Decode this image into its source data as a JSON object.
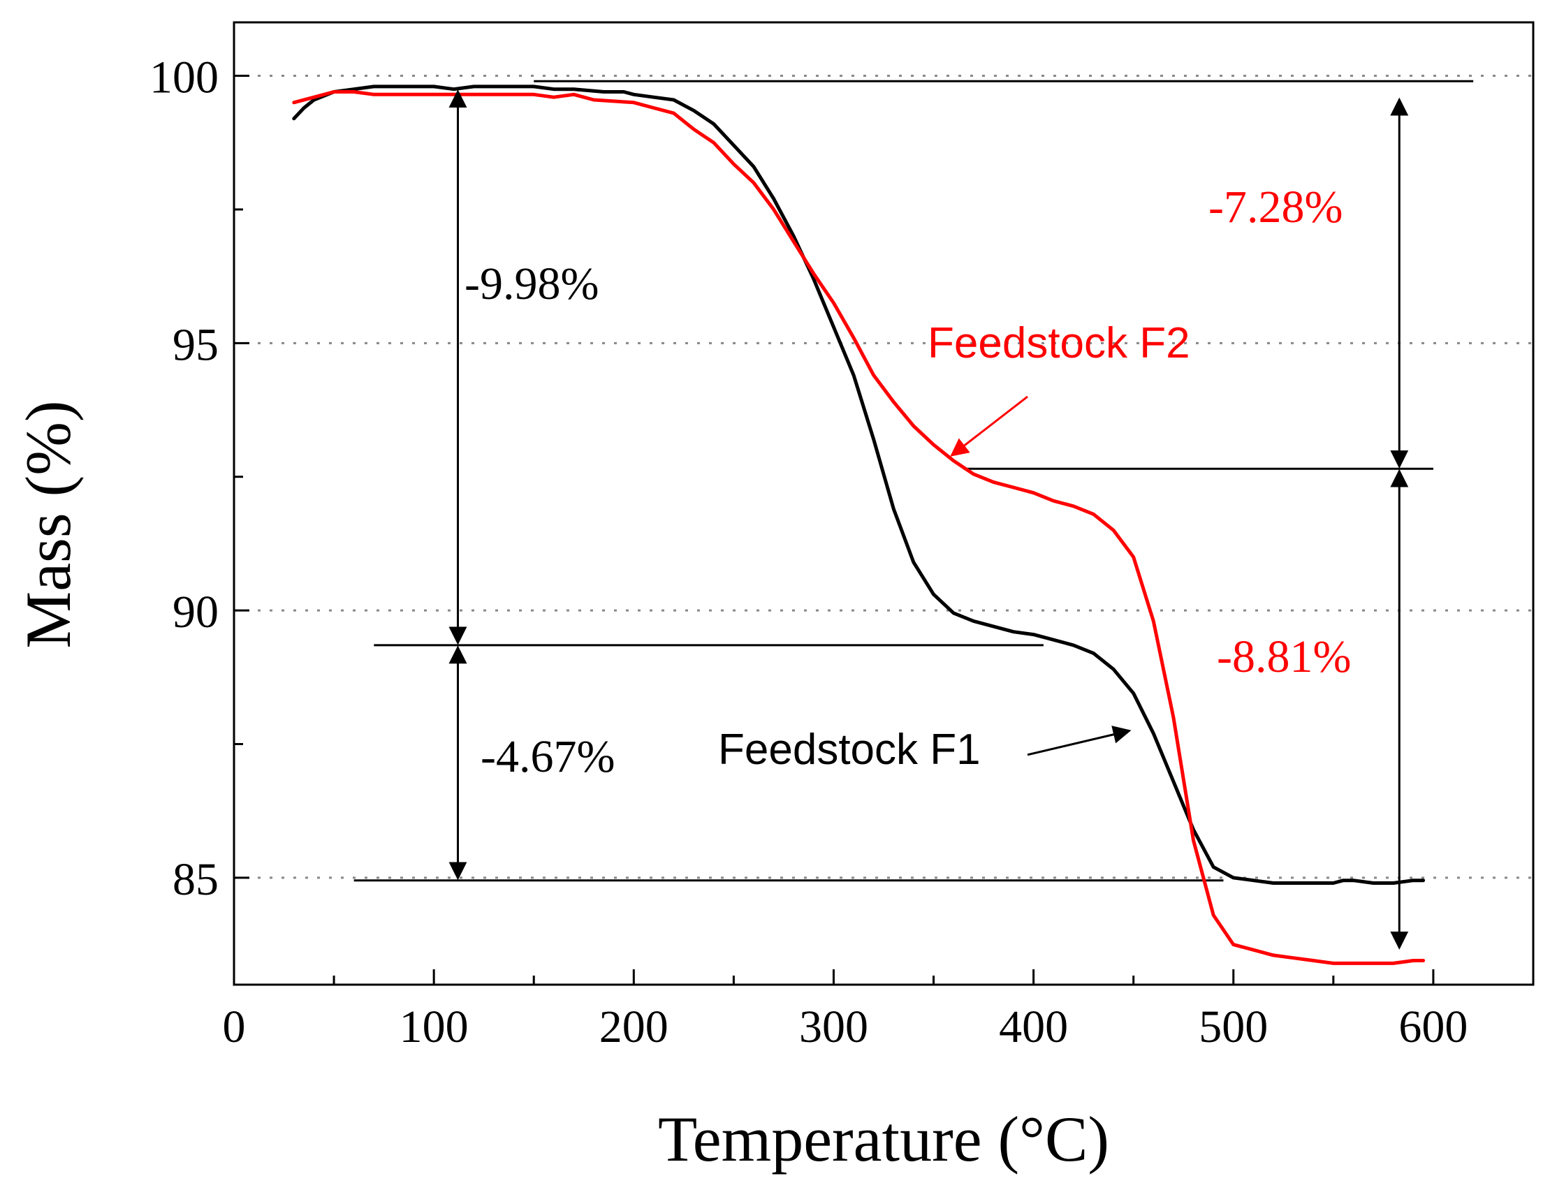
{
  "chart_data": {
    "type": "line",
    "title": "",
    "xlabel": "Temperature (°C)",
    "ylabel": "Mass (%)",
    "xlim": [
      0,
      650
    ],
    "ylim": [
      83,
      101
    ],
    "x_ticks": [
      0,
      100,
      200,
      300,
      400,
      500,
      600
    ],
    "y_ticks": [
      85,
      90,
      95,
      100
    ],
    "grid": "horizontal dotted at major y ticks",
    "colors": {
      "f1": "#000000",
      "f2": "#ff0000",
      "grid": "#888888"
    },
    "series": [
      {
        "name": "Feedstock F1",
        "color": "#000000",
        "points": [
          [
            30,
            99.2
          ],
          [
            35,
            99.4
          ],
          [
            40,
            99.55
          ],
          [
            50,
            99.7
          ],
          [
            60,
            99.75
          ],
          [
            70,
            99.8
          ],
          [
            100,
            99.8
          ],
          [
            110,
            99.75
          ],
          [
            120,
            99.8
          ],
          [
            150,
            99.8
          ],
          [
            160,
            99.75
          ],
          [
            170,
            99.75
          ],
          [
            185,
            99.7
          ],
          [
            195,
            99.7
          ],
          [
            200,
            99.65
          ],
          [
            210,
            99.6
          ],
          [
            220,
            99.55
          ],
          [
            230,
            99.35
          ],
          [
            240,
            99.1
          ],
          [
            250,
            98.7
          ],
          [
            260,
            98.3
          ],
          [
            270,
            97.7
          ],
          [
            280,
            97.0
          ],
          [
            290,
            96.2
          ],
          [
            300,
            95.3
          ],
          [
            310,
            94.4
          ],
          [
            320,
            93.2
          ],
          [
            330,
            91.9
          ],
          [
            340,
            90.9
          ],
          [
            350,
            90.3
          ],
          [
            360,
            89.95
          ],
          [
            370,
            89.8
          ],
          [
            380,
            89.7
          ],
          [
            390,
            89.6
          ],
          [
            400,
            89.55
          ],
          [
            410,
            89.45
          ],
          [
            420,
            89.35
          ],
          [
            430,
            89.2
          ],
          [
            440,
            88.9
          ],
          [
            450,
            88.45
          ],
          [
            460,
            87.7
          ],
          [
            470,
            86.8
          ],
          [
            480,
            85.9
          ],
          [
            490,
            85.2
          ],
          [
            500,
            85.0
          ],
          [
            510,
            84.95
          ],
          [
            520,
            84.9
          ],
          [
            550,
            84.9
          ],
          [
            555,
            84.95
          ],
          [
            560,
            84.95
          ],
          [
            570,
            84.9
          ],
          [
            580,
            84.9
          ],
          [
            590,
            84.95
          ],
          [
            595,
            84.95
          ]
        ]
      },
      {
        "name": "Feedstock F2",
        "color": "#ff0000",
        "points": [
          [
            30,
            99.5
          ],
          [
            40,
            99.6
          ],
          [
            50,
            99.7
          ],
          [
            60,
            99.7
          ],
          [
            70,
            99.65
          ],
          [
            110,
            99.65
          ],
          [
            150,
            99.65
          ],
          [
            160,
            99.6
          ],
          [
            170,
            99.65
          ],
          [
            180,
            99.55
          ],
          [
            200,
            99.5
          ],
          [
            210,
            99.4
          ],
          [
            220,
            99.3
          ],
          [
            230,
            99.0
          ],
          [
            240,
            98.75
          ],
          [
            250,
            98.35
          ],
          [
            260,
            98.0
          ],
          [
            270,
            97.5
          ],
          [
            280,
            96.9
          ],
          [
            290,
            96.3
          ],
          [
            300,
            95.75
          ],
          [
            310,
            95.1
          ],
          [
            320,
            94.4
          ],
          [
            330,
            93.9
          ],
          [
            340,
            93.45
          ],
          [
            350,
            93.1
          ],
          [
            360,
            92.8
          ],
          [
            370,
            92.55
          ],
          [
            380,
            92.4
          ],
          [
            390,
            92.3
          ],
          [
            400,
            92.2
          ],
          [
            410,
            92.05
          ],
          [
            420,
            91.95
          ],
          [
            430,
            91.8
          ],
          [
            440,
            91.5
          ],
          [
            450,
            91.0
          ],
          [
            460,
            89.8
          ],
          [
            470,
            88.0
          ],
          [
            480,
            85.7
          ],
          [
            490,
            84.3
          ],
          [
            500,
            83.75
          ],
          [
            510,
            83.65
          ],
          [
            520,
            83.55
          ],
          [
            530,
            83.5
          ],
          [
            540,
            83.45
          ],
          [
            550,
            83.4
          ],
          [
            570,
            83.4
          ],
          [
            580,
            83.4
          ],
          [
            590,
            83.45
          ],
          [
            595,
            83.45
          ]
        ]
      }
    ],
    "annotations": [
      {
        "text": "-9.98%",
        "color": "#000000"
      },
      {
        "text": "-4.67%",
        "color": "#000000"
      },
      {
        "text": "-7.28%",
        "color": "#ff0000"
      },
      {
        "text": "-8.81%",
        "color": "#ff0000"
      }
    ],
    "reference_lines": [
      {
        "y": 99.9,
        "x_from": 150,
        "x_to": 620
      },
      {
        "y": 92.65,
        "x_from": 365,
        "x_to": 600
      },
      {
        "y": 89.35,
        "x_from": 70,
        "x_to": 405
      },
      {
        "y": 84.95,
        "x_from": 60,
        "x_to": 495
      }
    ],
    "drop_arrows": [
      {
        "x": 112,
        "y_from": 99.75,
        "y_to": 89.35
      },
      {
        "x": 112,
        "y_from": 89.35,
        "y_to": 84.95
      },
      {
        "x": 583,
        "y_from": 99.6,
        "y_to": 92.65
      },
      {
        "x": 583,
        "y_from": 92.65,
        "y_to": 83.65
      }
    ],
    "pointer_arrows": [
      {
        "series": "Feedstock F2",
        "from": [
          397,
          94.0
        ],
        "to": [
          359,
          92.9
        ]
      },
      {
        "series": "Feedstock F1",
        "from": [
          397,
          87.3
        ],
        "to": [
          448,
          87.75
        ]
      }
    ]
  }
}
